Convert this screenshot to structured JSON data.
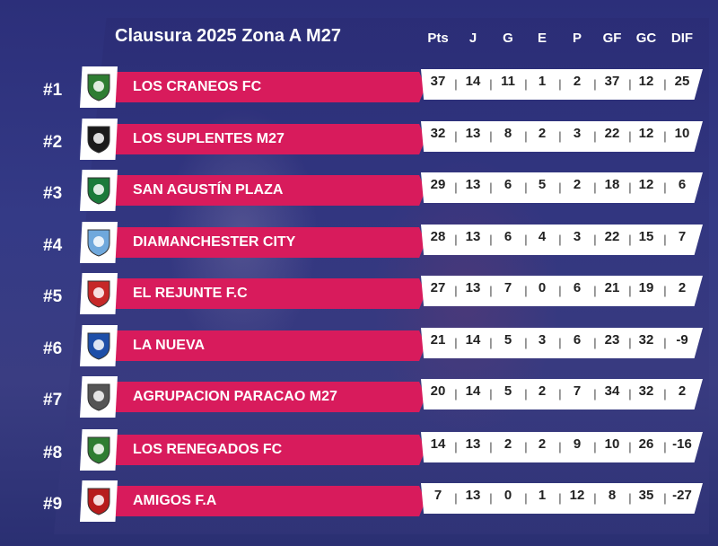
{
  "title": "Clausura 2025 Zona A M27",
  "columns": [
    "Pts",
    "J",
    "G",
    "E",
    "P",
    "GF",
    "GC",
    "DIF"
  ],
  "rows": [
    {
      "rank": "#1",
      "team": "LOS CRANEOS FC",
      "stats": [
        "37",
        "14",
        "11",
        "1",
        "2",
        "37",
        "12",
        "25"
      ],
      "logo_icon": "skull-crest-icon",
      "logo_color": "#2e7d32"
    },
    {
      "rank": "#2",
      "team": "LOS SUPLENTES M27",
      "stats": [
        "32",
        "13",
        "8",
        "2",
        "3",
        "22",
        "12",
        "10"
      ],
      "logo_icon": "shield-crest-icon",
      "logo_color": "#1a1a1a"
    },
    {
      "rank": "#3",
      "team": "SAN AGUSTÍN PLAZA",
      "stats": [
        "29",
        "13",
        "6",
        "5",
        "2",
        "18",
        "12",
        "6"
      ],
      "logo_icon": "striped-shield-icon",
      "logo_color": "#1b7a3a"
    },
    {
      "rank": "#4",
      "team": "DIAMANCHESTER CITY",
      "stats": [
        "28",
        "13",
        "6",
        "4",
        "3",
        "22",
        "15",
        "7"
      ],
      "logo_icon": "round-crest-icon",
      "logo_color": "#6fa8dc"
    },
    {
      "rank": "#5",
      "team": "EL REJUNTE F.C",
      "stats": [
        "27",
        "13",
        "7",
        "0",
        "6",
        "21",
        "19",
        "2"
      ],
      "logo_icon": "ball-shield-icon",
      "logo_color": "#c62828"
    },
    {
      "rank": "#6",
      "team": "LA NUEVA",
      "stats": [
        "21",
        "14",
        "5",
        "3",
        "6",
        "23",
        "32",
        "-9"
      ],
      "logo_icon": "blue-shield-icon",
      "logo_color": "#1e4fa8"
    },
    {
      "rank": "#7",
      "team": "AGRUPACION PARACAO M27",
      "stats": [
        "20",
        "14",
        "5",
        "2",
        "7",
        "34",
        "32",
        "2"
      ],
      "logo_icon": "winged-crest-icon",
      "logo_color": "#555555"
    },
    {
      "rank": "#8",
      "team": "LOS RENEGADOS FC",
      "stats": [
        "14",
        "13",
        "2",
        "2",
        "9",
        "10",
        "26",
        "-16"
      ],
      "logo_icon": "cross-shield-icon",
      "logo_color": "#2e7d32"
    },
    {
      "rank": "#9",
      "team": "AMIGOS F.A",
      "stats": [
        "7",
        "13",
        "0",
        "1",
        "12",
        "8",
        "35",
        "-27"
      ],
      "logo_icon": "ball-badge-icon",
      "logo_color": "#b71c1c"
    }
  ],
  "colors": {
    "accent": "#d81b5c",
    "background": "#3b3580",
    "panel": "#ffffff"
  }
}
